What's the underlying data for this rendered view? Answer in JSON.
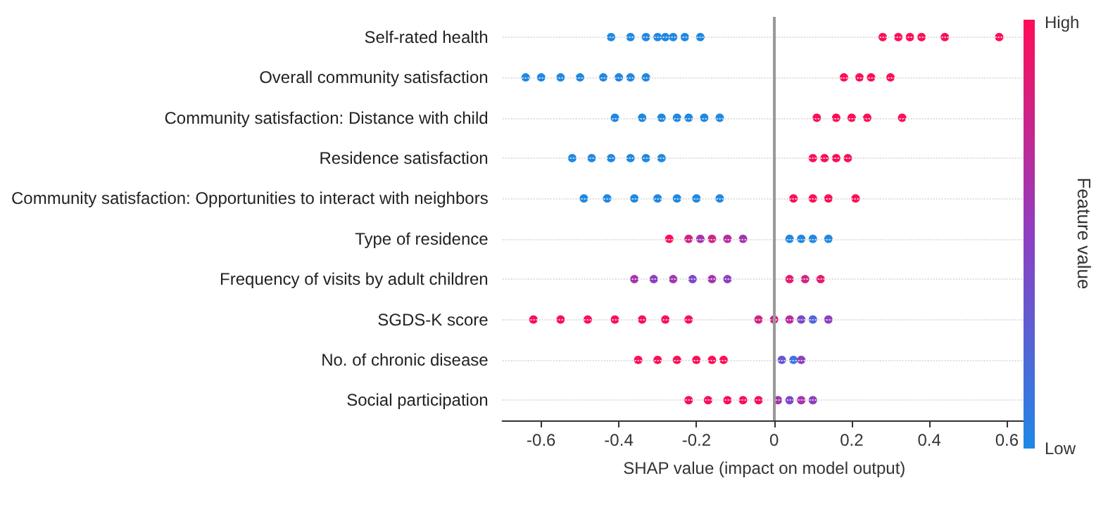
{
  "chart_data": {
    "type": "scatter",
    "orientation": "horizontal",
    "categories": [
      "Self-rated health",
      "Overall community satisfaction",
      "Community satisfaction: Distance with child",
      "Residence satisfaction",
      "Community satisfaction: Opportunities to interact with neighbors",
      "Type of residence",
      "Frequency of visits by adult children",
      "SGDS-K score",
      "No. of chronic disease",
      "Social participation"
    ],
    "series": [
      {
        "x": [
          "Self-rated health",
          "Self-rated health",
          "Self-rated health",
          "Self-rated health",
          "Self-rated health",
          "Self-rated health",
          "Self-rated health",
          "Self-rated health",
          "Self-rated health",
          "Self-rated health",
          "Self-rated health",
          "Self-rated health",
          "Self-rated health",
          "Self-rated health"
        ],
        "values": [
          -0.42,
          -0.37,
          -0.33,
          -0.3,
          -0.28,
          -0.26,
          -0.23,
          -0.19,
          0.28,
          0.32,
          0.35,
          0.38,
          0.44,
          0.58
        ],
        "colors": [
          "#1e88e5",
          "#1e88e5",
          "#1e88e5",
          "#1e88e5",
          "#1e88e5",
          "#1e88e5",
          "#1e88e5",
          "#1e88e5",
          "#ff0d57",
          "#ff0d57",
          "#ff0d57",
          "#ff0d57",
          "#ff0d57",
          "#ff0d57"
        ]
      },
      {
        "x": [
          "Overall community satisfaction",
          "Overall community satisfaction",
          "Overall community satisfaction",
          "Overall community satisfaction",
          "Overall community satisfaction",
          "Overall community satisfaction",
          "Overall community satisfaction",
          "Overall community satisfaction",
          "Overall community satisfaction",
          "Overall community satisfaction",
          "Overall community satisfaction",
          "Overall community satisfaction"
        ],
        "values": [
          -0.64,
          -0.6,
          -0.55,
          -0.5,
          -0.44,
          -0.4,
          -0.37,
          -0.33,
          0.18,
          0.22,
          0.25,
          0.3
        ],
        "colors": [
          "#1e88e5",
          "#1e88e5",
          "#1e88e5",
          "#1e88e5",
          "#1e88e5",
          "#1e88e5",
          "#1e88e5",
          "#1e88e5",
          "#ff0d57",
          "#ff0d57",
          "#ff0d57",
          "#ff0d57"
        ]
      },
      {
        "x": [
          "Community satisfaction: Distance with child",
          "Community satisfaction: Distance with child",
          "Community satisfaction: Distance with child",
          "Community satisfaction: Distance with child",
          "Community satisfaction: Distance with child",
          "Community satisfaction: Distance with child",
          "Community satisfaction: Distance with child",
          "Community satisfaction: Distance with child",
          "Community satisfaction: Distance with child",
          "Community satisfaction: Distance with child",
          "Community satisfaction: Distance with child",
          "Community satisfaction: Distance with child"
        ],
        "values": [
          -0.41,
          -0.34,
          -0.29,
          -0.25,
          -0.22,
          -0.18,
          -0.14,
          0.11,
          0.16,
          0.2,
          0.24,
          0.33
        ],
        "colors": [
          "#1e88e5",
          "#1e88e5",
          "#1e88e5",
          "#1e88e5",
          "#1e88e5",
          "#1e88e5",
          "#1e88e5",
          "#ff0d57",
          "#ff0d57",
          "#ff0d57",
          "#ff0d57",
          "#ff0d57"
        ]
      },
      {
        "x": [
          "Residence satisfaction",
          "Residence satisfaction",
          "Residence satisfaction",
          "Residence satisfaction",
          "Residence satisfaction",
          "Residence satisfaction",
          "Residence satisfaction",
          "Residence satisfaction",
          "Residence satisfaction",
          "Residence satisfaction"
        ],
        "values": [
          -0.52,
          -0.47,
          -0.42,
          -0.37,
          -0.33,
          -0.29,
          0.1,
          0.13,
          0.16,
          0.19
        ],
        "colors": [
          "#1e88e5",
          "#1e88e5",
          "#1e88e5",
          "#1e88e5",
          "#1e88e5",
          "#1e88e5",
          "#ff0d57",
          "#ff0d57",
          "#ff0d57",
          "#ff0d57"
        ]
      },
      {
        "x": [
          "Community satisfaction: Opportunities to interact with neighbors",
          "Community satisfaction: Opportunities to interact with neighbors",
          "Community satisfaction: Opportunities to interact with neighbors",
          "Community satisfaction: Opportunities to interact with neighbors",
          "Community satisfaction: Opportunities to interact with neighbors",
          "Community satisfaction: Opportunities to interact with neighbors",
          "Community satisfaction: Opportunities to interact with neighbors",
          "Community satisfaction: Opportunities to interact with neighbors",
          "Community satisfaction: Opportunities to interact with neighbors",
          "Community satisfaction: Opportunities to interact with neighbors",
          "Community satisfaction: Opportunities to interact with neighbors"
        ],
        "values": [
          -0.49,
          -0.43,
          -0.36,
          -0.3,
          -0.25,
          -0.2,
          -0.14,
          0.05,
          0.1,
          0.14,
          0.21
        ],
        "colors": [
          "#1e88e5",
          "#1e88e5",
          "#1e88e5",
          "#1e88e5",
          "#1e88e5",
          "#1e88e5",
          "#1e88e5",
          "#ff0d57",
          "#ff0d57",
          "#ff0d57",
          "#ff0d57"
        ]
      },
      {
        "x": [
          "Type of residence",
          "Type of residence",
          "Type of residence",
          "Type of residence",
          "Type of residence",
          "Type of residence",
          "Type of residence",
          "Type of residence",
          "Type of residence",
          "Type of residence"
        ],
        "values": [
          -0.27,
          -0.22,
          -0.19,
          -0.16,
          -0.12,
          -0.08,
          0.04,
          0.07,
          0.1,
          0.14
        ],
        "colors": [
          "#ff0d57",
          "#d22286",
          "#a634b0",
          "#d22286",
          "#bd2a9c",
          "#a634b0",
          "#1e88e5",
          "#1e88e5",
          "#1e88e5",
          "#1e88e5"
        ]
      },
      {
        "x": [
          "Frequency of visits by adult children",
          "Frequency of visits by adult children",
          "Frequency of visits by adult children",
          "Frequency of visits by adult children",
          "Frequency of visits by adult children",
          "Frequency of visits by adult children",
          "Frequency of visits by adult children",
          "Frequency of visits by adult children",
          "Frequency of visits by adult children"
        ],
        "values": [
          -0.36,
          -0.31,
          -0.26,
          -0.21,
          -0.16,
          -0.12,
          0.04,
          0.08,
          0.12
        ],
        "colors": [
          "#a634b0",
          "#8f3ec2",
          "#a634b0",
          "#7c48cc",
          "#a634b0",
          "#8f3ec2",
          "#e8186e",
          "#d22286",
          "#e8186e"
        ]
      },
      {
        "x": [
          "SGDS-K score",
          "SGDS-K score",
          "SGDS-K score",
          "SGDS-K score",
          "SGDS-K score",
          "SGDS-K score",
          "SGDS-K score",
          "SGDS-K score",
          "SGDS-K score",
          "SGDS-K score",
          "SGDS-K score",
          "SGDS-K score",
          "SGDS-K score"
        ],
        "values": [
          -0.62,
          -0.55,
          -0.48,
          -0.41,
          -0.34,
          -0.28,
          -0.22,
          -0.04,
          0,
          0.04,
          0.07,
          0.1,
          0.14
        ],
        "colors": [
          "#ff0d57",
          "#ff0d57",
          "#ff0d57",
          "#ff0d57",
          "#ff0d57",
          "#ff0d57",
          "#ff0d57",
          "#d22286",
          "#d22286",
          "#bd2a9c",
          "#7c48cc",
          "#5265dc",
          "#8f3ec2"
        ]
      },
      {
        "x": [
          "No. of chronic disease",
          "No. of chronic disease",
          "No. of chronic disease",
          "No. of chronic disease",
          "No. of chronic disease",
          "No. of chronic disease",
          "No. of chronic disease",
          "No. of chronic disease",
          "No. of chronic disease"
        ],
        "values": [
          -0.35,
          -0.3,
          -0.25,
          -0.2,
          -0.16,
          -0.13,
          0.02,
          0.05,
          0.07
        ],
        "colors": [
          "#ff0d57",
          "#ff0d57",
          "#ff0d57",
          "#ff0d57",
          "#ff0d57",
          "#ff0d57",
          "#6a55d4",
          "#3a76e0",
          "#8f3ec2"
        ]
      },
      {
        "x": [
          "Social participation",
          "Social participation",
          "Social participation",
          "Social participation",
          "Social participation",
          "Social participation",
          "Social participation",
          "Social participation",
          "Social participation"
        ],
        "values": [
          -0.22,
          -0.17,
          -0.12,
          -0.08,
          -0.04,
          0.01,
          0.04,
          0.07,
          0.1
        ],
        "colors": [
          "#ff0d57",
          "#ff0d57",
          "#ff0d57",
          "#ff0d57",
          "#ff0d57",
          "#a634b0",
          "#7c48cc",
          "#a634b0",
          "#8f3ec2"
        ]
      }
    ],
    "xlabel": "SHAP value (impact on model output)",
    "xlim": [
      -0.7,
      0.65
    ],
    "xticks": [
      -0.6,
      -0.4,
      -0.2,
      0,
      0.2,
      0.4,
      0.6
    ],
    "clabel": "Feature value",
    "annotations": [
      "High",
      "Low"
    ],
    "ref_lines": [
      {
        "axis": "x",
        "value": 0,
        "color": "#999999"
      }
    ],
    "grid": "y",
    "marker": "circle"
  }
}
